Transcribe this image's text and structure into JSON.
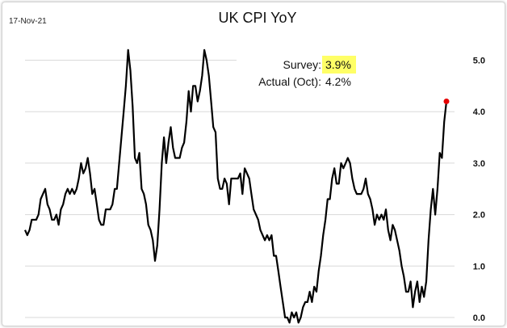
{
  "header": {
    "date": "17-Nov-21",
    "title": "UK CPI YoY"
  },
  "annotations": {
    "survey_label": "Survey:",
    "survey_value": "3.9%",
    "actual_label": "Actual (Oct):",
    "actual_value": "4.2%"
  },
  "colors": {
    "line": "#000000",
    "highlight": "#ffff66",
    "last_point": "#e60000",
    "grid": "#d9d9d9"
  },
  "chart_data": {
    "type": "line",
    "title": "UK CPI YoY",
    "xlabel": "",
    "ylabel": "",
    "ylim": [
      0,
      5.5
    ],
    "yticks": [
      "0.0",
      "1.0",
      "2.0",
      "3.0",
      "4.0",
      "5.0"
    ],
    "grid": true,
    "y_axis_position": "right",
    "series": [
      {
        "values": [
          1.7,
          1.6,
          1.7,
          1.9,
          1.9,
          1.9,
          2.0,
          2.3,
          2.4,
          2.5,
          2.2,
          2.1,
          1.9,
          1.9,
          2.0,
          1.8,
          2.1,
          2.2,
          2.4,
          2.5,
          2.4,
          2.5,
          2.4,
          2.5,
          2.7,
          3.0,
          2.8,
          2.9,
          3.1,
          2.8,
          2.4,
          2.5,
          2.2,
          1.9,
          1.8,
          1.8,
          2.1,
          2.1,
          2.1,
          2.2,
          2.5,
          2.5,
          3.0,
          3.5,
          4.0,
          4.5,
          5.2,
          4.8,
          4.1,
          3.1,
          3.0,
          3.2,
          2.5,
          2.4,
          2.2,
          1.8,
          1.7,
          1.5,
          1.1,
          1.4,
          2.1,
          3.0,
          3.5,
          3.0,
          3.4,
          3.7,
          3.3,
          3.1,
          3.1,
          3.1,
          3.3,
          3.4,
          3.8,
          4.4,
          4.0,
          4.5,
          4.5,
          4.2,
          4.4,
          4.7,
          5.2,
          5.0,
          4.7,
          4.2,
          3.7,
          3.6,
          2.7,
          2.5,
          2.5,
          2.7,
          2.6,
          2.2,
          2.7,
          2.7,
          2.7,
          2.7,
          2.8,
          2.4,
          2.9,
          2.8,
          2.7,
          2.4,
          2.1,
          2.0,
          1.9,
          1.7,
          1.6,
          1.5,
          1.6,
          1.5,
          1.6,
          1.2,
          1.2,
          0.9,
          0.6,
          0.3,
          0.0,
          0.0,
          -0.1,
          0.1,
          0.0,
          0.1,
          -0.1,
          0.0,
          0.2,
          0.3,
          0.3,
          0.5,
          0.3,
          0.6,
          0.5,
          0.9,
          1.2,
          1.6,
          1.9,
          2.3,
          2.3,
          2.7,
          2.9,
          2.6,
          2.6,
          3.0,
          2.9,
          3.0,
          3.1,
          3.0,
          2.7,
          2.5,
          2.4,
          2.4,
          2.4,
          2.5,
          2.7,
          2.4,
          2.3,
          2.1,
          1.8,
          2.0,
          1.9,
          2.0,
          1.9,
          2.1,
          1.7,
          1.5,
          1.8,
          1.7,
          1.5,
          1.3,
          1.0,
          0.8,
          0.5,
          0.5,
          0.7,
          0.2,
          0.5,
          0.7,
          0.3,
          0.6,
          0.4,
          0.7,
          1.5,
          2.1,
          2.5,
          2.0,
          2.5,
          3.2,
          3.1,
          3.8,
          4.2
        ]
      }
    ],
    "last_point": {
      "value": 4.2
    }
  }
}
